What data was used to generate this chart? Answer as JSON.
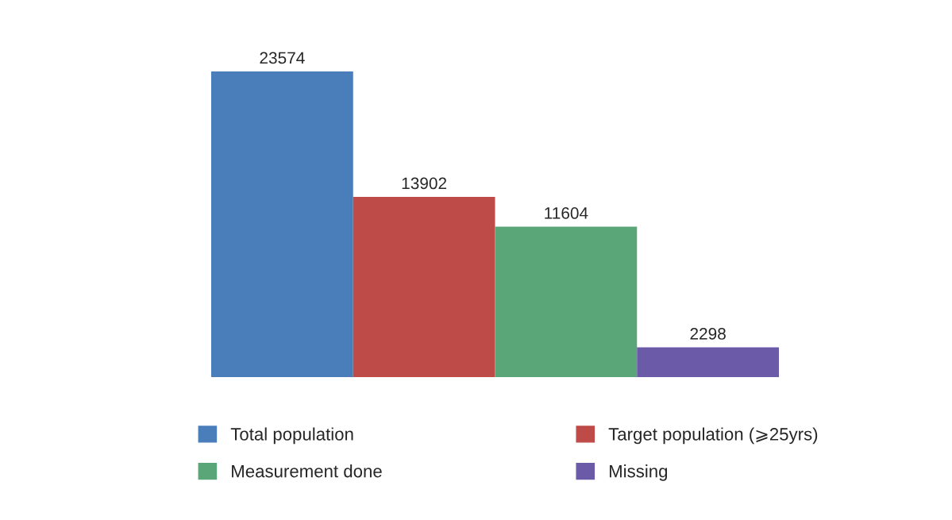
{
  "chart_data": {
    "type": "bar",
    "categories": [
      null
    ],
    "series": [
      {
        "name": "Total population",
        "color": "#4a7ebb",
        "values": [
          23574
        ]
      },
      {
        "name": "Target population (⩾25yrs)",
        "color": "#be4b48",
        "values": [
          13902
        ]
      },
      {
        "name": "Measurement done",
        "color": "#5ba678",
        "values": [
          11604
        ]
      },
      {
        "name": "Missing",
        "color": "#6a5aa8",
        "values": [
          2298
        ]
      }
    ],
    "data_labels": true,
    "legend": "bottom"
  }
}
